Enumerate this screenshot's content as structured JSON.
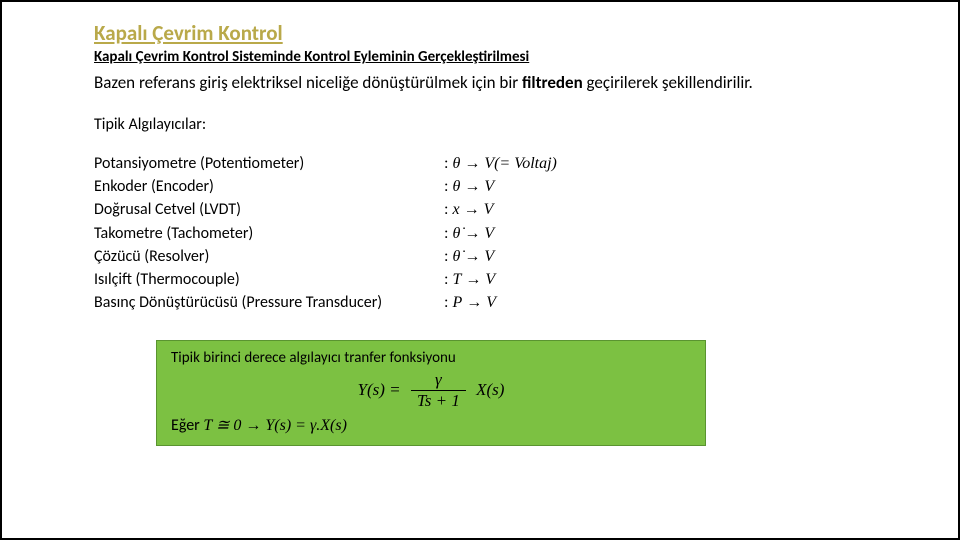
{
  "title": "Kapalı Çevrim Kontrol",
  "subtitle": "Kapalı Çevrim Kontrol Sisteminde Kontrol Eyleminin Gerçekleştirilmesi",
  "body_prefix": "Bazen referans giriş elektriksel niceliğe dönüştürülmek için bir ",
  "body_bold": "filtreden",
  "body_suffix": " geçirilerek şekillendirilir.",
  "section_label": "Tipik Algılayıcılar:",
  "sensors": [
    {
      "name": "Potansiyometre (Potentiometer)",
      "lhs": "θ",
      "rhs": "V(= Voltaj)"
    },
    {
      "name": "Enkoder (Encoder)",
      "lhs": "θ",
      "rhs": "V"
    },
    {
      "name": "Doğrusal Cetvel (LVDT)",
      "lhs": "x",
      "rhs": "V"
    },
    {
      "name": "Takometre (Tachometer)",
      "lhs": "θ̇",
      "rhs": "V"
    },
    {
      "name": "Çözücü (Resolver)",
      "lhs": "θ̇",
      "rhs": "V"
    },
    {
      "name": "Isılçift (Thermocouple)",
      "lhs": "T",
      "rhs": "V"
    },
    {
      "name": "Basınç Dönüştürücüsü (Pressure Transducer)",
      "lhs": "P",
      "rhs": "V"
    }
  ],
  "box": {
    "title": "Tipik birinci derece algılayıcı tranfer fonksiyonu",
    "eq_lhs": "Y(s) =",
    "eq_num": "γ",
    "eq_den": "Ts + 1",
    "eq_rhs": "X(s)",
    "line2_label": "Eğer ",
    "line2_math": "T ≅ 0 → Y(s) = γ.X(s)"
  },
  "colors": {
    "title": "#b9a94a",
    "box_bg": "#7cc142",
    "box_border": "#5a9430",
    "text": "#000000",
    "bg": "#ffffff"
  }
}
